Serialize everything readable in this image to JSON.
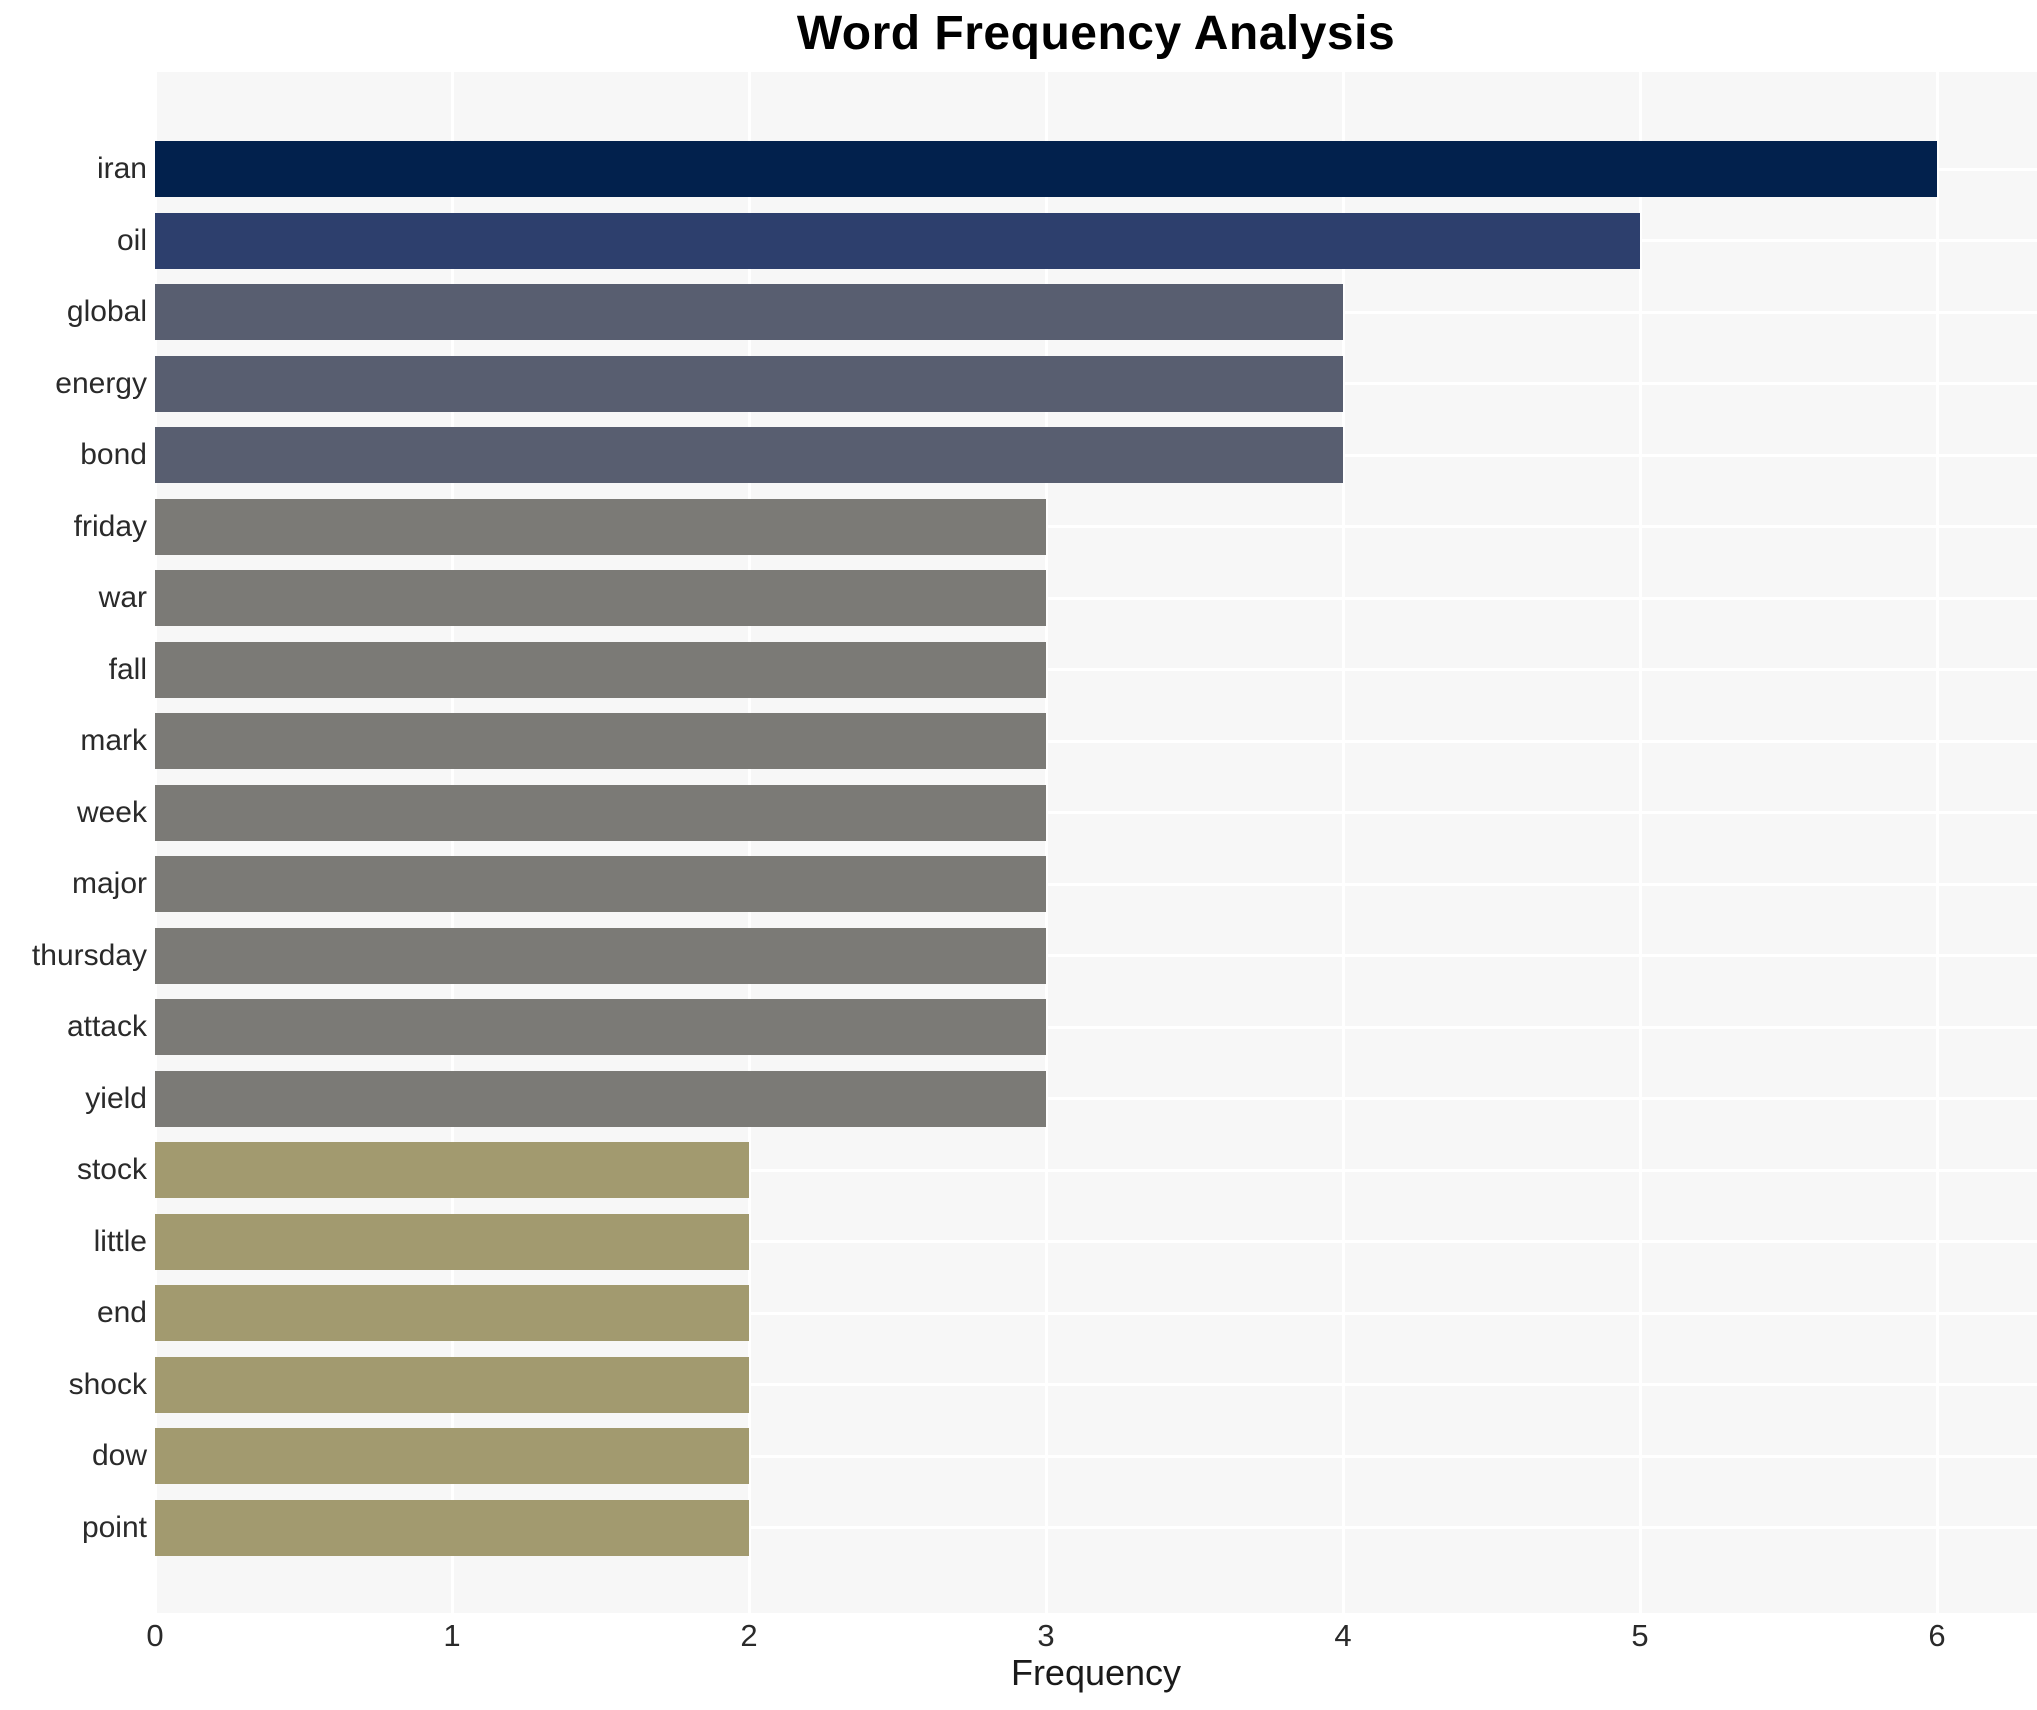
{
  "title": "Word Frequency Analysis",
  "chart_data": {
    "type": "bar",
    "orientation": "horizontal",
    "title": "Word Frequency Analysis",
    "xlabel": "Frequency",
    "ylabel": "",
    "categories": [
      "iran",
      "oil",
      "global",
      "energy",
      "bond",
      "friday",
      "war",
      "fall",
      "mark",
      "week",
      "major",
      "thursday",
      "attack",
      "yield",
      "stock",
      "little",
      "end",
      "shock",
      "dow",
      "point"
    ],
    "values": [
      6,
      5,
      4,
      4,
      4,
      3,
      3,
      3,
      3,
      3,
      3,
      3,
      3,
      3,
      2,
      2,
      2,
      2,
      2,
      2
    ],
    "bar_colors": [
      "#02214d",
      "#2d3f6d",
      "#585e70",
      "#585e70",
      "#585e70",
      "#7b7a76",
      "#7b7a76",
      "#7b7a76",
      "#7b7a76",
      "#7b7a76",
      "#7b7a76",
      "#7b7a76",
      "#7b7a76",
      "#7b7a76",
      "#a29a6f",
      "#a29a6f",
      "#a29a6f",
      "#a29a6f",
      "#a29a6f",
      "#a29a6f"
    ],
    "xticks": [
      0,
      1,
      2,
      3,
      4,
      5,
      6
    ],
    "xlim": [
      0,
      6.34
    ],
    "grid": true,
    "legend": false,
    "plot_bg_color": "#f7f7f7",
    "grid_color": "#ffffff",
    "text_color": "#2a2a2a"
  }
}
